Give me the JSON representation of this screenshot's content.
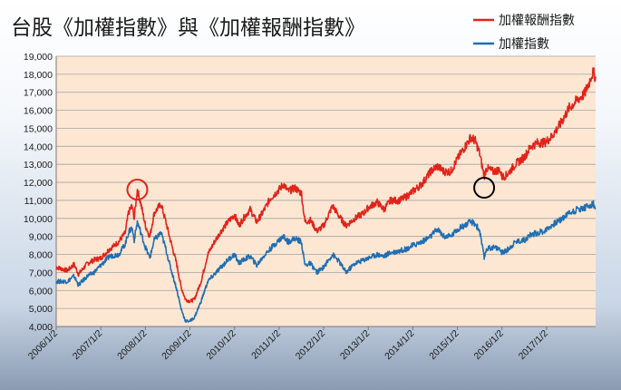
{
  "chart_data": {
    "type": "line",
    "title": "台股《加權指數》與《加權報酬指數》",
    "xlabel": "",
    "ylabel": "",
    "ylim": [
      4000,
      19000
    ],
    "yticks": [
      "4,000",
      "5,000",
      "6,000",
      "7,000",
      "8,000",
      "9,000",
      "10,000",
      "11,000",
      "12,000",
      "13,000",
      "14,000",
      "15,000",
      "16,000",
      "17,000",
      "18,000",
      "19,000"
    ],
    "xlim": [
      2006.0,
      2018.1
    ],
    "xticks": [
      {
        "label": "2006/1/2",
        "x": 2006.0
      },
      {
        "label": "2007/1/2",
        "x": 2007.0
      },
      {
        "label": "2008/1/2",
        "x": 2008.0
      },
      {
        "label": "2009/1/2",
        "x": 2009.0
      },
      {
        "label": "2010/1/2",
        "x": 2010.0
      },
      {
        "label": "2011/1/2",
        "x": 2011.0
      },
      {
        "label": "2012/1/2",
        "x": 2012.0
      },
      {
        "label": "2013/1/2",
        "x": 2013.0
      },
      {
        "label": "2014/1/2",
        "x": 2014.0
      },
      {
        "label": "2015/1/2",
        "x": 2015.0
      },
      {
        "label": "2016/1/2",
        "x": 2016.0
      },
      {
        "label": "2017/1/2",
        "x": 2017.0
      }
    ],
    "grid": true,
    "legend": "top-right",
    "series": [
      {
        "name": "加權報酬指數",
        "color": "#e2231a",
        "points": [
          [
            2006.0,
            7300
          ],
          [
            2006.25,
            7100
          ],
          [
            2006.4,
            7450
          ],
          [
            2006.5,
            6900
          ],
          [
            2006.7,
            7500
          ],
          [
            2006.85,
            7700
          ],
          [
            2007.0,
            7800
          ],
          [
            2007.2,
            8300
          ],
          [
            2007.4,
            8700
          ],
          [
            2007.55,
            9200
          ],
          [
            2007.62,
            10300
          ],
          [
            2007.7,
            10700
          ],
          [
            2007.75,
            10000
          ],
          [
            2007.82,
            11600
          ],
          [
            2007.9,
            10800
          ],
          [
            2008.0,
            9600
          ],
          [
            2008.1,
            9000
          ],
          [
            2008.2,
            10300
          ],
          [
            2008.35,
            10800
          ],
          [
            2008.45,
            9900
          ],
          [
            2008.55,
            8900
          ],
          [
            2008.7,
            7500
          ],
          [
            2008.8,
            6200
          ],
          [
            2008.9,
            5500
          ],
          [
            2009.0,
            5400
          ],
          [
            2009.1,
            5500
          ],
          [
            2009.25,
            6500
          ],
          [
            2009.4,
            8000
          ],
          [
            2009.55,
            8700
          ],
          [
            2009.7,
            9300
          ],
          [
            2009.85,
            9800
          ],
          [
            2010.0,
            10200
          ],
          [
            2010.1,
            9600
          ],
          [
            2010.2,
            10000
          ],
          [
            2010.35,
            10500
          ],
          [
            2010.5,
            9800
          ],
          [
            2010.65,
            10400
          ],
          [
            2010.8,
            11100
          ],
          [
            2011.0,
            11600
          ],
          [
            2011.1,
            11900
          ],
          [
            2011.2,
            11500
          ],
          [
            2011.35,
            11700
          ],
          [
            2011.5,
            11400
          ],
          [
            2011.58,
            9800
          ],
          [
            2011.7,
            9900
          ],
          [
            2011.85,
            9300
          ],
          [
            2012.0,
            9600
          ],
          [
            2012.2,
            10700
          ],
          [
            2012.35,
            10100
          ],
          [
            2012.5,
            9600
          ],
          [
            2012.7,
            10000
          ],
          [
            2012.9,
            10300
          ],
          [
            2013.0,
            10600
          ],
          [
            2013.2,
            10900
          ],
          [
            2013.35,
            10500
          ],
          [
            2013.5,
            11000
          ],
          [
            2013.7,
            11000
          ],
          [
            2013.85,
            11200
          ],
          [
            2014.0,
            11500
          ],
          [
            2014.2,
            11900
          ],
          [
            2014.4,
            12600
          ],
          [
            2014.55,
            12900
          ],
          [
            2014.7,
            12600
          ],
          [
            2014.85,
            12600
          ],
          [
            2015.0,
            13300
          ],
          [
            2015.15,
            13900
          ],
          [
            2015.3,
            14500
          ],
          [
            2015.4,
            14300
          ],
          [
            2015.5,
            13600
          ],
          [
            2015.6,
            12300
          ],
          [
            2015.65,
            12800
          ],
          [
            2015.8,
            12600
          ],
          [
            2015.95,
            12700
          ],
          [
            2016.0,
            12300
          ],
          [
            2016.1,
            12400
          ],
          [
            2016.3,
            13000
          ],
          [
            2016.5,
            13400
          ],
          [
            2016.65,
            14000
          ],
          [
            2016.8,
            14200
          ],
          [
            2016.95,
            14200
          ],
          [
            2017.1,
            14500
          ],
          [
            2017.3,
            15200
          ],
          [
            2017.5,
            16100
          ],
          [
            2017.7,
            16600
          ],
          [
            2017.85,
            16900
          ],
          [
            2017.95,
            17500
          ],
          [
            2018.0,
            17900
          ],
          [
            2018.05,
            18100
          ],
          [
            2018.1,
            17800
          ]
        ]
      },
      {
        "name": "加權指數",
        "color": "#1f6fb2",
        "points": [
          [
            2006.0,
            6500
          ],
          [
            2006.25,
            6500
          ],
          [
            2006.4,
            6800
          ],
          [
            2006.5,
            6300
          ],
          [
            2006.7,
            6800
          ],
          [
            2006.85,
            7000
          ],
          [
            2007.0,
            7400
          ],
          [
            2007.2,
            7900
          ],
          [
            2007.4,
            8000
          ],
          [
            2007.55,
            8600
          ],
          [
            2007.62,
            9200
          ],
          [
            2007.7,
            9500
          ],
          [
            2007.75,
            8800
          ],
          [
            2007.82,
            9800
          ],
          [
            2007.9,
            9200
          ],
          [
            2008.0,
            8400
          ],
          [
            2008.1,
            7800
          ],
          [
            2008.2,
            8800
          ],
          [
            2008.35,
            9200
          ],
          [
            2008.45,
            8400
          ],
          [
            2008.55,
            7400
          ],
          [
            2008.7,
            6100
          ],
          [
            2008.8,
            5000
          ],
          [
            2008.9,
            4300
          ],
          [
            2009.0,
            4300
          ],
          [
            2009.1,
            4500
          ],
          [
            2009.25,
            5400
          ],
          [
            2009.4,
            6500
          ],
          [
            2009.55,
            6900
          ],
          [
            2009.7,
            7300
          ],
          [
            2009.85,
            7700
          ],
          [
            2010.0,
            8000
          ],
          [
            2010.1,
            7500
          ],
          [
            2010.2,
            7700
          ],
          [
            2010.35,
            7900
          ],
          [
            2010.5,
            7400
          ],
          [
            2010.65,
            7900
          ],
          [
            2010.8,
            8300
          ],
          [
            2011.0,
            8800
          ],
          [
            2011.1,
            9000
          ],
          [
            2011.2,
            8700
          ],
          [
            2011.35,
            8900
          ],
          [
            2011.5,
            8700
          ],
          [
            2011.58,
            7400
          ],
          [
            2011.7,
            7500
          ],
          [
            2011.85,
            7000
          ],
          [
            2012.0,
            7300
          ],
          [
            2012.2,
            8000
          ],
          [
            2012.35,
            7600
          ],
          [
            2012.5,
            7000
          ],
          [
            2012.7,
            7500
          ],
          [
            2012.9,
            7700
          ],
          [
            2013.0,
            7800
          ],
          [
            2013.2,
            8000
          ],
          [
            2013.35,
            7900
          ],
          [
            2013.5,
            8100
          ],
          [
            2013.7,
            8200
          ],
          [
            2013.85,
            8300
          ],
          [
            2014.0,
            8500
          ],
          [
            2014.2,
            8700
          ],
          [
            2014.4,
            9000
          ],
          [
            2014.55,
            9400
          ],
          [
            2014.7,
            9000
          ],
          [
            2014.85,
            9000
          ],
          [
            2015.0,
            9400
          ],
          [
            2015.15,
            9600
          ],
          [
            2015.3,
            9800
          ],
          [
            2015.4,
            9700
          ],
          [
            2015.5,
            9300
          ],
          [
            2015.6,
            7800
          ],
          [
            2015.65,
            8300
          ],
          [
            2015.8,
            8400
          ],
          [
            2015.95,
            8300
          ],
          [
            2016.0,
            8100
          ],
          [
            2016.1,
            8200
          ],
          [
            2016.3,
            8700
          ],
          [
            2016.5,
            8800
          ],
          [
            2016.65,
            9100
          ],
          [
            2016.8,
            9200
          ],
          [
            2016.95,
            9300
          ],
          [
            2017.1,
            9600
          ],
          [
            2017.3,
            9900
          ],
          [
            2017.5,
            10300
          ],
          [
            2017.7,
            10500
          ],
          [
            2017.85,
            10600
          ],
          [
            2017.95,
            10700
          ],
          [
            2018.0,
            10750
          ],
          [
            2018.05,
            10800
          ],
          [
            2018.1,
            10500
          ]
        ]
      }
    ],
    "annotations": [
      {
        "shape": "circle",
        "color": "#e2231a",
        "x": 2007.82,
        "y": 11600
      },
      {
        "shape": "circle",
        "color": "#000000",
        "x": 2015.6,
        "y": 11700
      }
    ]
  }
}
